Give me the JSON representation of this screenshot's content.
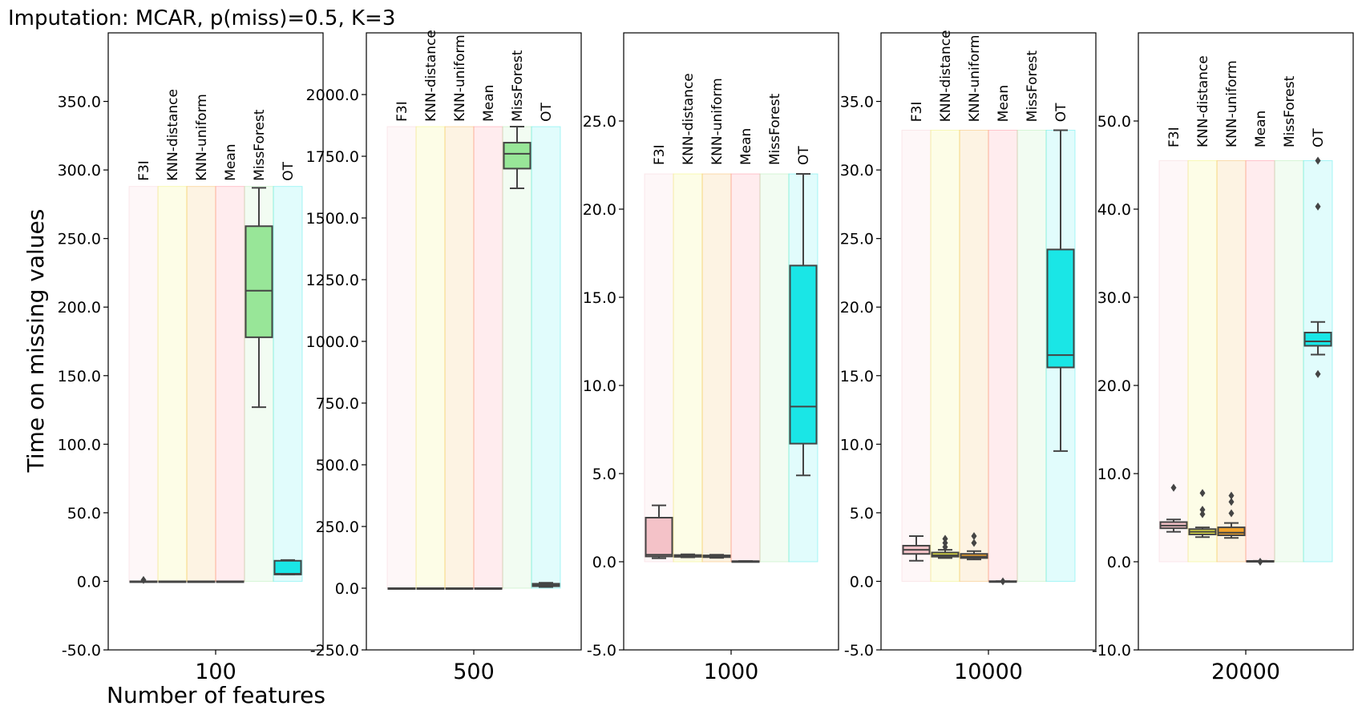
{
  "chart_data": {
    "type": "box",
    "title": "Imputation: MCAR, p(miss)=0.5, K=3",
    "ylabel": "Time on missing values",
    "xlabel": "Number of features",
    "methods": [
      "F3I",
      "KNN-distance",
      "KNN-uniform",
      "Mean",
      "MissForest",
      "OT"
    ],
    "colors": {
      "F3I": "#f4c2c8",
      "KNN-distance": "#eded43",
      "KNN-uniform": "#f3a32a",
      "Mean": "#ff6a7a",
      "MissForest": "#98e698",
      "OT": "#1ae6e6",
      "line": "#444444"
    },
    "panels": [
      {
        "category": "100",
        "ylim": [
          -50,
          400
        ],
        "yticks": [
          -50,
          0,
          50,
          100,
          150,
          200,
          250,
          300,
          350
        ],
        "ytick_labels": [
          "-50.0",
          "0.0",
          "50.0",
          "100.0",
          "150.0",
          "200.0",
          "250.0",
          "300.0",
          "350.0"
        ],
        "band_max": 288,
        "label_top": 292,
        "boxes": [
          {
            "method": "F3I",
            "whislo": 0,
            "q1": 0,
            "med": 0,
            "q3": 0,
            "whishi": 0,
            "fliers": [
              1
            ]
          },
          {
            "method": "KNN-distance",
            "whislo": 0,
            "q1": 0,
            "med": 0,
            "q3": 0,
            "whishi": 0,
            "fliers": []
          },
          {
            "method": "KNN-uniform",
            "whislo": 0,
            "q1": 0,
            "med": 0,
            "q3": 0,
            "whishi": 0,
            "fliers": []
          },
          {
            "method": "Mean",
            "whislo": 0,
            "q1": 0,
            "med": 0,
            "q3": 0,
            "whishi": 0,
            "fliers": []
          },
          {
            "method": "MissForest",
            "whislo": 127,
            "q1": 178,
            "med": 212,
            "q3": 259,
            "whishi": 287,
            "fliers": []
          },
          {
            "method": "OT",
            "whislo": 5,
            "q1": 5,
            "med": 5.5,
            "q3": 15,
            "whishi": 15.5,
            "fliers": []
          }
        ]
      },
      {
        "category": "500",
        "ylim": [
          -250,
          2250
        ],
        "yticks": [
          -250,
          0,
          250,
          500,
          750,
          1000,
          1250,
          1500,
          1750,
          2000
        ],
        "ytick_labels": [
          "-250.0",
          "0.0",
          "250.0",
          "500.0",
          "750.0",
          "1000.0",
          "1250.0",
          "1500.0",
          "1750.0",
          "2000.0"
        ],
        "band_max": 1870,
        "label_top": 1890,
        "boxes": [
          {
            "method": "F3I",
            "whislo": 0,
            "q1": 0,
            "med": 0,
            "q3": 0,
            "whishi": 0,
            "fliers": []
          },
          {
            "method": "KNN-distance",
            "whislo": 0,
            "q1": 0,
            "med": 0,
            "q3": 0,
            "whishi": 0,
            "fliers": []
          },
          {
            "method": "KNN-uniform",
            "whislo": 0,
            "q1": 0,
            "med": 0,
            "q3": 0,
            "whishi": 0,
            "fliers": []
          },
          {
            "method": "Mean",
            "whislo": 0,
            "q1": 0,
            "med": 0,
            "q3": 0,
            "whishi": 0,
            "fliers": []
          },
          {
            "method": "MissForest",
            "whislo": 1620,
            "q1": 1700,
            "med": 1760,
            "q3": 1805,
            "whishi": 1870,
            "fliers": []
          },
          {
            "method": "OT",
            "whislo": 5,
            "q1": 8,
            "med": 12,
            "q3": 18,
            "whishi": 22,
            "fliers": []
          }
        ]
      },
      {
        "category": "1000",
        "ylim": [
          -5,
          30
        ],
        "yticks": [
          -5,
          0,
          5,
          10,
          15,
          20,
          25
        ],
        "ytick_labels": [
          "-5.0",
          "0.0",
          "5.0",
          "10.0",
          "15.0",
          "20.0",
          "25.0"
        ],
        "band_max": 22,
        "label_top": 22.5,
        "boxes": [
          {
            "method": "F3I",
            "whislo": 0.2,
            "q1": 0.3,
            "med": 0.4,
            "q3": 2.5,
            "whishi": 3.2,
            "fliers": []
          },
          {
            "method": "KNN-distance",
            "whislo": 0.25,
            "q1": 0.28,
            "med": 0.32,
            "q3": 0.38,
            "whishi": 0.42,
            "fliers": []
          },
          {
            "method": "KNN-uniform",
            "whislo": 0.22,
            "q1": 0.26,
            "med": 0.3,
            "q3": 0.36,
            "whishi": 0.4,
            "fliers": []
          },
          {
            "method": "Mean",
            "whislo": 0.02,
            "q1": 0.02,
            "med": 0.03,
            "q3": 0.03,
            "whishi": 0.04,
            "fliers": []
          },
          {
            "method": "OT",
            "whislo": 4.9,
            "q1": 6.7,
            "med": 8.8,
            "q3": 16.8,
            "whishi": 22,
            "fliers": []
          }
        ]
      },
      {
        "category": "10000",
        "ylim": [
          -5,
          40
        ],
        "yticks": [
          -5,
          0,
          5,
          10,
          15,
          20,
          25,
          30,
          35
        ],
        "ytick_labels": [
          "-5.0",
          "0.0",
          "5.0",
          "10.0",
          "15.0",
          "20.0",
          "25.0",
          "30.0",
          "35.0"
        ],
        "band_max": 32.9,
        "label_top": 33.5,
        "boxes": [
          {
            "method": "F3I",
            "whislo": 1.5,
            "q1": 2.0,
            "med": 2.3,
            "q3": 2.6,
            "whishi": 3.3,
            "fliers": []
          },
          {
            "method": "KNN-distance",
            "whislo": 1.7,
            "q1": 1.8,
            "med": 1.9,
            "q3": 2.1,
            "whishi": 2.3,
            "fliers": [
              2.5,
              2.8,
              3.1
            ]
          },
          {
            "method": "KNN-uniform",
            "whislo": 1.6,
            "q1": 1.7,
            "med": 1.8,
            "q3": 2.0,
            "whishi": 2.2,
            "fliers": [
              2.8,
              3.3
            ]
          },
          {
            "method": "Mean",
            "whislo": 0.0,
            "q1": 0.0,
            "med": 0.0,
            "q3": 0.01,
            "whishi": 0.01,
            "fliers": [
              0.0
            ]
          },
          {
            "method": "OT",
            "whislo": 9.5,
            "q1": 15.6,
            "med": 16.5,
            "q3": 24.2,
            "whishi": 32.9,
            "fliers": []
          }
        ]
      },
      {
        "category": "20000",
        "ylim": [
          -10,
          60
        ],
        "yticks": [
          -10,
          0,
          10,
          20,
          30,
          40,
          50
        ],
        "ytick_labels": [
          "-10.0",
          "0.0",
          "10.0",
          "20.0",
          "30.0",
          "40.0",
          "50.0"
        ],
        "band_max": 45.5,
        "label_top": 47,
        "boxes": [
          {
            "method": "F3I",
            "whislo": 3.4,
            "q1": 3.8,
            "med": 4.1,
            "q3": 4.5,
            "whishi": 4.8,
            "fliers": [
              8.4
            ]
          },
          {
            "method": "KNN-distance",
            "whislo": 2.8,
            "q1": 3.1,
            "med": 3.4,
            "q3": 3.7,
            "whishi": 3.9,
            "fliers": [
              5.4,
              5.9,
              7.8
            ]
          },
          {
            "method": "KNN-uniform",
            "whislo": 2.7,
            "q1": 3.0,
            "med": 3.3,
            "q3": 3.9,
            "whishi": 4.4,
            "fliers": [
              5.5,
              6.8,
              7.5
            ]
          },
          {
            "method": "Mean",
            "whislo": 0.05,
            "q1": 0.05,
            "med": 0.07,
            "q3": 0.09,
            "whishi": 0.1,
            "fliers": [
              0.0
            ]
          },
          {
            "method": "OT",
            "whislo": 23.5,
            "q1": 24.5,
            "med": 25.0,
            "q3": 26.0,
            "whishi": 27.2,
            "fliers": [
              21.3,
              40.3,
              45.5
            ]
          }
        ]
      }
    ]
  }
}
